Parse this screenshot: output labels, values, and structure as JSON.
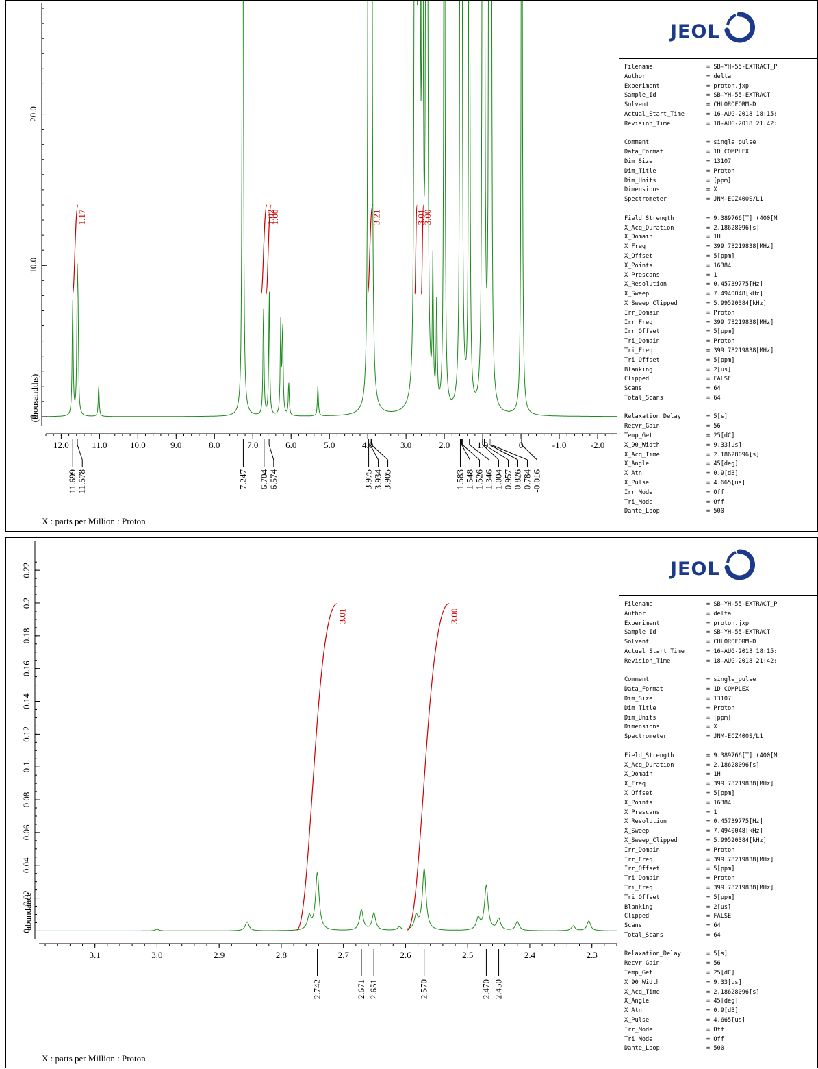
{
  "logo": {
    "text": "JEOL"
  },
  "x_axis_caption": "X : parts per Million : Proton",
  "params": [
    [
      "Filename",
      "= SB-YH-55-EXTRACT_P"
    ],
    [
      "Author",
      "= delta"
    ],
    [
      "Experiment",
      "= proton.jxp"
    ],
    [
      "Sample_Id",
      "= SB-YH-55-EXTRACT"
    ],
    [
      "Solvent",
      "= CHLOROFORM-D"
    ],
    [
      "Actual_Start_Time",
      "= 16-AUG-2018 18:15:"
    ],
    [
      "Revision_Time",
      "= 18-AUG-2018 21:42:"
    ],
    null,
    [
      "Comment",
      "= single_pulse"
    ],
    [
      "Data_Format",
      "= 1D COMPLEX"
    ],
    [
      "Dim_Size",
      "= 13107"
    ],
    [
      "Dim_Title",
      "= Proton"
    ],
    [
      "Dim_Units",
      "= [ppm]"
    ],
    [
      "Dimensions",
      "= X"
    ],
    [
      "Spectrometer",
      "= JNM-ECZ400S/L1"
    ],
    null,
    [
      "Field_Strength",
      "= 9.389766[T] (400[M"
    ],
    [
      "X_Acq_Duration",
      "= 2.18628096[s]"
    ],
    [
      "X_Domain",
      "= 1H"
    ],
    [
      "X_Freq",
      "= 399.78219838[MHz]"
    ],
    [
      "X_Offset",
      "= 5[ppm]"
    ],
    [
      "X_Points",
      "= 16384"
    ],
    [
      "X_Prescans",
      "= 1"
    ],
    [
      "X_Resolution",
      "= 0.45739775[Hz]"
    ],
    [
      "X_Sweep",
      "= 7.4940048[kHz]"
    ],
    [
      "X_Sweep_Clipped",
      "= 5.99520384[kHz]"
    ],
    [
      "Irr_Domain",
      "= Proton"
    ],
    [
      "Irr_Freq",
      "= 399.78219838[MHz]"
    ],
    [
      "Irr_Offset",
      "= 5[ppm]"
    ],
    [
      "Tri_Domain",
      "= Proton"
    ],
    [
      "Tri_Freq",
      "= 399.78219838[MHz]"
    ],
    [
      "Tri_Offset",
      "= 5[ppm]"
    ],
    [
      "Blanking",
      "= 2[us]"
    ],
    [
      "Clipped",
      "= FALSE"
    ],
    [
      "Scans",
      "= 64"
    ],
    [
      "Total_Scans",
      "= 64"
    ],
    null,
    [
      "Relaxation_Delay",
      "= 5[s]"
    ],
    [
      "Recvr_Gain",
      "= 56"
    ],
    [
      "Temp_Get",
      "= 25[dC]"
    ],
    [
      "X_90_Width",
      "= 9.33[us]"
    ],
    [
      "X_Acq_Time",
      "= 2.18628096[s]"
    ],
    [
      "X_Angle",
      "= 45[deg]"
    ],
    [
      "X_Atn",
      "= 0.9[dB]"
    ],
    [
      "X_Pulse",
      "= 4.665[us]"
    ],
    [
      "Irr_Mode",
      "= Off"
    ],
    [
      "Tri_Mode",
      "= Off"
    ],
    [
      "Dante_Loop",
      "= 500"
    ]
  ],
  "chart_data": [
    {
      "type": "line",
      "xlabel": "X : parts per Million : Proton",
      "ylabel": "(thousandths)",
      "xlim": [
        12.4,
        -2.5
      ],
      "ylim": [
        -0.5,
        27.5
      ],
      "x_ticks": [
        "12.0",
        "11.0",
        "10.0",
        "9.0",
        "8.0",
        "7.0",
        "6.0",
        "5.0",
        "4.0",
        "3.0",
        "2.0",
        "1.0",
        "0",
        "-1.0",
        "-2.0"
      ],
      "y_ticks": [
        "0",
        "10.0",
        "20.0"
      ],
      "peak_labels": [
        "11.699",
        "11.578",
        "7.247",
        "6.704",
        "6.574",
        "3.975",
        "3.934",
        "3.905",
        "1.583",
        "1.548",
        "1.526",
        "1.346",
        "1.004",
        "0.957",
        "0.826",
        "0.784",
        "-0.016"
      ],
      "peak_label_positions": [
        11.699,
        11.578,
        7.247,
        6.704,
        6.574,
        3.975,
        3.934,
        3.905,
        1.583,
        1.548,
        1.526,
        1.346,
        1.004,
        0.957,
        0.826,
        0.784,
        -0.016
      ],
      "integrals": [
        {
          "label": "1.17",
          "x_start": 11.7,
          "x_end": 11.56
        },
        {
          "label": "1.02",
          "x_start": 6.78,
          "x_end": 6.63
        },
        {
          "label": "1.00",
          "x_start": 6.65,
          "x_end": 6.52
        },
        {
          "label": "3.21",
          "x_start": 4.0,
          "x_end": 3.87
        },
        {
          "label": "3.01",
          "x_start": 2.77,
          "x_end": 2.71
        },
        {
          "label": "3.00",
          "x_start": 2.6,
          "x_end": 2.54
        }
      ],
      "series": [
        {
          "peaks": [
            [
              11.7,
              7.7
            ],
            [
              11.58,
              8.3
            ],
            [
              11.56,
              4.9
            ],
            [
              11.02,
              2.1
            ],
            [
              7.26,
              60
            ],
            [
              6.72,
              7.3
            ],
            [
              6.57,
              8.3
            ],
            [
              6.27,
              6.0
            ],
            [
              6.22,
              5.9
            ],
            [
              6.06,
              2.2
            ],
            [
              5.3,
              2.0
            ],
            [
              3.98,
              60
            ],
            [
              3.93,
              60
            ],
            [
              3.9,
              60
            ],
            [
              2.77,
              60
            ],
            [
              2.74,
              60
            ],
            [
              2.67,
              60
            ],
            [
              2.65,
              60
            ],
            [
              2.57,
              60
            ],
            [
              2.47,
              60
            ],
            [
              2.45,
              60
            ],
            [
              2.3,
              9
            ],
            [
              2.2,
              7
            ],
            [
              2.0,
              60
            ],
            [
              1.58,
              60
            ],
            [
              1.55,
              60
            ],
            [
              1.35,
              60
            ],
            [
              1.0,
              60
            ],
            [
              0.96,
              60
            ],
            [
              0.83,
              60
            ],
            [
              0.78,
              60
            ],
            [
              -0.02,
              60
            ]
          ]
        }
      ]
    },
    {
      "type": "line",
      "xlabel": "X : parts per Million : Proton",
      "ylabel": "abundance",
      "xlim": [
        3.19,
        2.26
      ],
      "ylim": [
        -0.004,
        0.228
      ],
      "x_ticks": [
        "3.1",
        "3.0",
        "2.9",
        "2.8",
        "2.7",
        "2.6",
        "2.5",
        "2.4",
        "2.3"
      ],
      "y_ticks": [
        "0",
        "0.02",
        "0.04",
        "0.06",
        "0.08",
        "0.1",
        "0.12",
        "0.14",
        "0.16",
        "0.18",
        "0.2",
        "0.22"
      ],
      "peak_labels": [
        "2.742",
        "2.671",
        "2.651",
        "2.570",
        "2.470",
        "2.450"
      ],
      "peak_label_positions": [
        2.742,
        2.671,
        2.651,
        2.57,
        2.47,
        2.45
      ],
      "integrals": [
        {
          "label": "3.01",
          "x_start": 2.775,
          "x_end": 2.71
        },
        {
          "label": "3.00",
          "x_start": 2.597,
          "x_end": 2.53
        }
      ],
      "series": [
        {
          "peaks": [
            [
              3.0,
              0.001
            ],
            [
              2.855,
              0.0055
            ],
            [
              2.755,
              0.008
            ],
            [
              2.742,
              0.035
            ],
            [
              2.671,
              0.0125
            ],
            [
              2.651,
              0.0105
            ],
            [
              2.61,
              0.002
            ],
            [
              2.583,
              0.008
            ],
            [
              2.57,
              0.0375
            ],
            [
              2.483,
              0.007
            ],
            [
              2.47,
              0.027
            ],
            [
              2.45,
              0.007
            ],
            [
              2.42,
              0.0055
            ],
            [
              2.33,
              0.003
            ],
            [
              2.305,
              0.006
            ]
          ]
        }
      ]
    }
  ]
}
